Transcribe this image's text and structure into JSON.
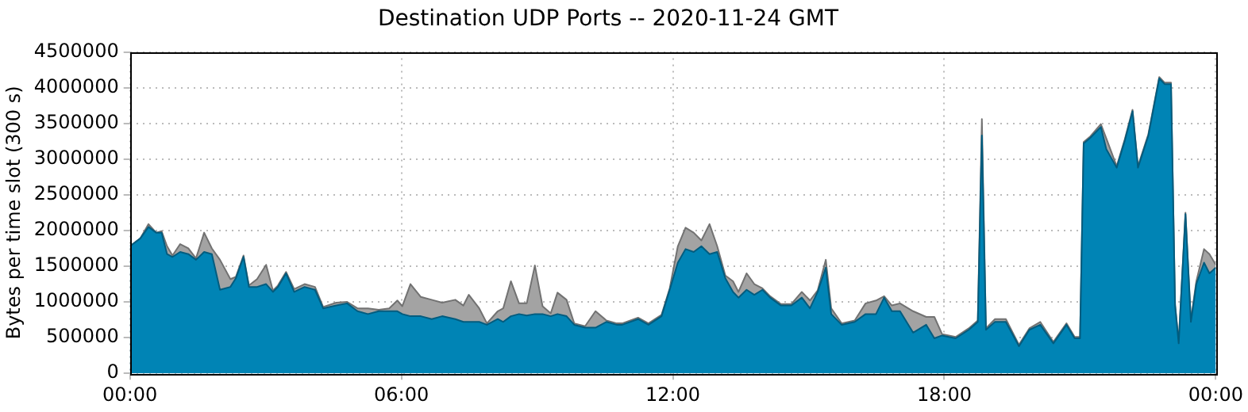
{
  "chart_data": {
    "type": "area",
    "title": "Destination UDP Ports -- 2020-11-24 GMT",
    "ylabel": "Bytes per time slot (300 s)",
    "stacked": true,
    "grid": true,
    "x": [
      0,
      0.23,
      0.41,
      0.58,
      0.7,
      0.82,
      0.94,
      1.11,
      1.29,
      1.46,
      1.64,
      1.81,
      1.99,
      2.22,
      2.34,
      2.51,
      2.63,
      2.81,
      3.01,
      3.16,
      3.27,
      3.45,
      3.63,
      3.86,
      4.09,
      4.27,
      4.56,
      4.8,
      5.03,
      5.26,
      5.5,
      5.73,
      5.91,
      6.02,
      6.2,
      6.43,
      6.67,
      6.9,
      7.19,
      7.37,
      7.49,
      7.72,
      7.89,
      8.13,
      8.25,
      8.42,
      8.6,
      8.77,
      8.95,
      9.12,
      9.3,
      9.45,
      9.65,
      9.82,
      10.06,
      10.29,
      10.53,
      10.76,
      10.88,
      11.23,
      11.46,
      11.75,
      11.93,
      12.11,
      12.28,
      12.46,
      12.63,
      12.81,
      12.98,
      13.16,
      13.33,
      13.45,
      13.63,
      13.8,
      13.98,
      14.15,
      14.39,
      14.62,
      14.85,
      15.03,
      15.2,
      15.38,
      15.5,
      15.73,
      16.02,
      16.26,
      16.49,
      16.67,
      16.84,
      17.02,
      17.31,
      17.6,
      17.78,
      17.95,
      18.25,
      18.54,
      18.74,
      18.83,
      18.92,
      19.12,
      19.36,
      19.65,
      19.88,
      20.12,
      20.41,
      20.7,
      20.88,
      21,
      21.08,
      21.23,
      21.46,
      21.58,
      21.81,
      21.99,
      22.16,
      22.28,
      22.51,
      22.75,
      22.87,
      23.01,
      23.1,
      23.18,
      23.33,
      23.45,
      23.57,
      23.74,
      23.86,
      24
    ],
    "series": [
      {
        "color": "#0084b5",
        "values": [
          1780000,
          1890000,
          2050000,
          1970000,
          1970000,
          1670000,
          1630000,
          1700000,
          1670000,
          1590000,
          1700000,
          1670000,
          1170000,
          1210000,
          1330000,
          1630000,
          1210000,
          1210000,
          1250000,
          1140000,
          1210000,
          1400000,
          1140000,
          1210000,
          1170000,
          910000,
          950000,
          980000,
          870000,
          830000,
          870000,
          870000,
          870000,
          830000,
          800000,
          800000,
          760000,
          800000,
          760000,
          720000,
          720000,
          720000,
          680000,
          760000,
          720000,
          800000,
          830000,
          810000,
          830000,
          830000,
          800000,
          830000,
          800000,
          680000,
          640000,
          640000,
          720000,
          680000,
          680000,
          760000,
          680000,
          800000,
          1170000,
          1550000,
          1740000,
          1700000,
          1780000,
          1670000,
          1700000,
          1330000,
          1140000,
          1060000,
          1170000,
          1100000,
          1170000,
          1060000,
          950000,
          950000,
          1060000,
          910000,
          1140000,
          1480000,
          830000,
          680000,
          720000,
          830000,
          830000,
          1060000,
          870000,
          870000,
          570000,
          680000,
          490000,
          530000,
          490000,
          610000,
          720000,
          3330000,
          610000,
          720000,
          720000,
          380000,
          610000,
          680000,
          420000,
          680000,
          490000,
          490000,
          3220000,
          3300000,
          3450000,
          3140000,
          2880000,
          3260000,
          3670000,
          2880000,
          3330000,
          4130000,
          4050000,
          4050000,
          950000,
          420000,
          2230000,
          720000,
          1250000,
          1550000,
          1400000,
          1480000
        ]
      },
      {
        "color": "#a3a3a3",
        "values": [
          0,
          0,
          40000,
          0,
          20000,
          110000,
          20000,
          110000,
          80000,
          20000,
          270000,
          80000,
          420000,
          110000,
          20000,
          20000,
          20000,
          110000,
          270000,
          20000,
          20000,
          20000,
          40000,
          40000,
          40000,
          20000,
          40000,
          20000,
          40000,
          80000,
          20000,
          40000,
          150000,
          110000,
          450000,
          270000,
          270000,
          190000,
          270000,
          230000,
          380000,
          190000,
          20000,
          110000,
          190000,
          490000,
          150000,
          170000,
          680000,
          110000,
          40000,
          300000,
          230000,
          20000,
          20000,
          230000,
          20000,
          20000,
          20000,
          20000,
          20000,
          20000,
          20000,
          230000,
          300000,
          270000,
          80000,
          420000,
          80000,
          40000,
          150000,
          80000,
          230000,
          150000,
          20000,
          20000,
          20000,
          20000,
          80000,
          110000,
          20000,
          110000,
          80000,
          20000,
          20000,
          150000,
          190000,
          20000,
          80000,
          110000,
          300000,
          110000,
          300000,
          20000,
          20000,
          20000,
          20000,
          230000,
          20000,
          40000,
          40000,
          20000,
          20000,
          40000,
          20000,
          20000,
          20000,
          20000,
          20000,
          20000,
          40000,
          150000,
          20000,
          20000,
          20000,
          20000,
          20000,
          20000,
          20000,
          20000,
          20000,
          20000,
          20000,
          20000,
          40000,
          190000,
          270000,
          40000
        ]
      }
    ],
    "xlim": [
      0,
      24
    ],
    "xticks": [
      {
        "value": 0,
        "label": "00:00"
      },
      {
        "value": 6,
        "label": "06:00"
      },
      {
        "value": 12,
        "label": "12:00"
      },
      {
        "value": 18,
        "label": "18:00"
      },
      {
        "value": 24,
        "label": "00:00"
      }
    ],
    "ylim": [
      0,
      4500000
    ],
    "yticks": [
      0,
      500000,
      1000000,
      1500000,
      2000000,
      2500000,
      3000000,
      3500000,
      4000000,
      4500000
    ]
  }
}
